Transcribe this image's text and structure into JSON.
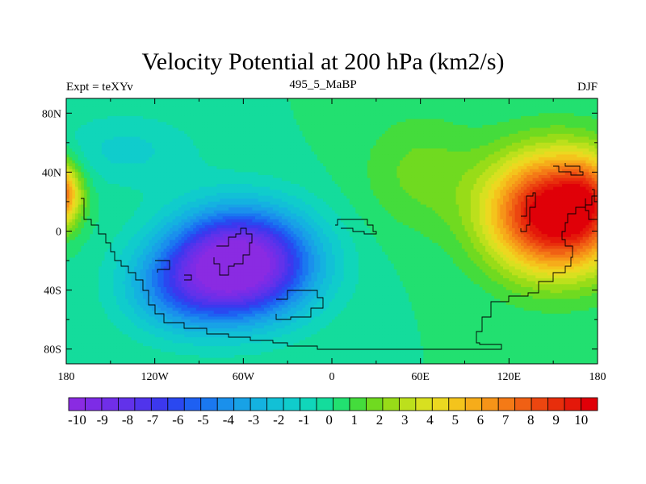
{
  "title": "Velocity Potential at 200 hPa (km2/s)",
  "subtitle_left": "Expt = teXYv",
  "subtitle_center": "495_5_MaBP",
  "subtitle_right": "DJF",
  "map": {
    "lon_range": [
      -180,
      180
    ],
    "lat_range": [
      -90,
      90
    ],
    "lon_ticks": [
      {
        "value": -180,
        "label": "180"
      },
      {
        "value": -120,
        "label": "120W"
      },
      {
        "value": -60,
        "label": "60W"
      },
      {
        "value": 0,
        "label": "0"
      },
      {
        "value": 60,
        "label": "60E"
      },
      {
        "value": 120,
        "label": "120E"
      },
      {
        "value": 180,
        "label": "180"
      }
    ],
    "lat_ticks": [
      {
        "value": 80,
        "label": "80N"
      },
      {
        "value": 40,
        "label": "40N"
      },
      {
        "value": 0,
        "label": "0"
      },
      {
        "value": -40,
        "label": "40S"
      },
      {
        "value": -80,
        "label": "80S"
      }
    ],
    "field_centers": [
      {
        "lon": -60,
        "lat": -20,
        "value": -10.5
      },
      {
        "lon": 150,
        "lat": 15,
        "value": 10.5
      },
      {
        "lon": -180,
        "lat": 25,
        "value": 9.5
      }
    ]
  },
  "colorbar": {
    "labels": [
      "-10",
      "-9",
      "-8",
      "-7",
      "-6",
      "-5",
      "-4",
      "-3",
      "-2",
      "-1",
      "0",
      "1",
      "2",
      "3",
      "4",
      "5",
      "6",
      "7",
      "8",
      "9",
      "10"
    ],
    "colors": [
      "#8a2be2",
      "#7d2ce6",
      "#702ee8",
      "#6232ea",
      "#5034ec",
      "#3c38ee",
      "#2a48f0",
      "#1e60f2",
      "#1a78f0",
      "#1a90ec",
      "#18a2e6",
      "#14b2e0",
      "#12c0d6",
      "#10cccc",
      "#10d6ba",
      "#14dc9c",
      "#22e070",
      "#44dc3c",
      "#70da20",
      "#98dc18",
      "#bce01c",
      "#d8e020",
      "#ecd820",
      "#f4c41c",
      "#f6ac1a",
      "#f69418",
      "#f47a16",
      "#f06014",
      "#ec4610",
      "#e82e0c",
      "#e4180a",
      "#e00008"
    ]
  }
}
